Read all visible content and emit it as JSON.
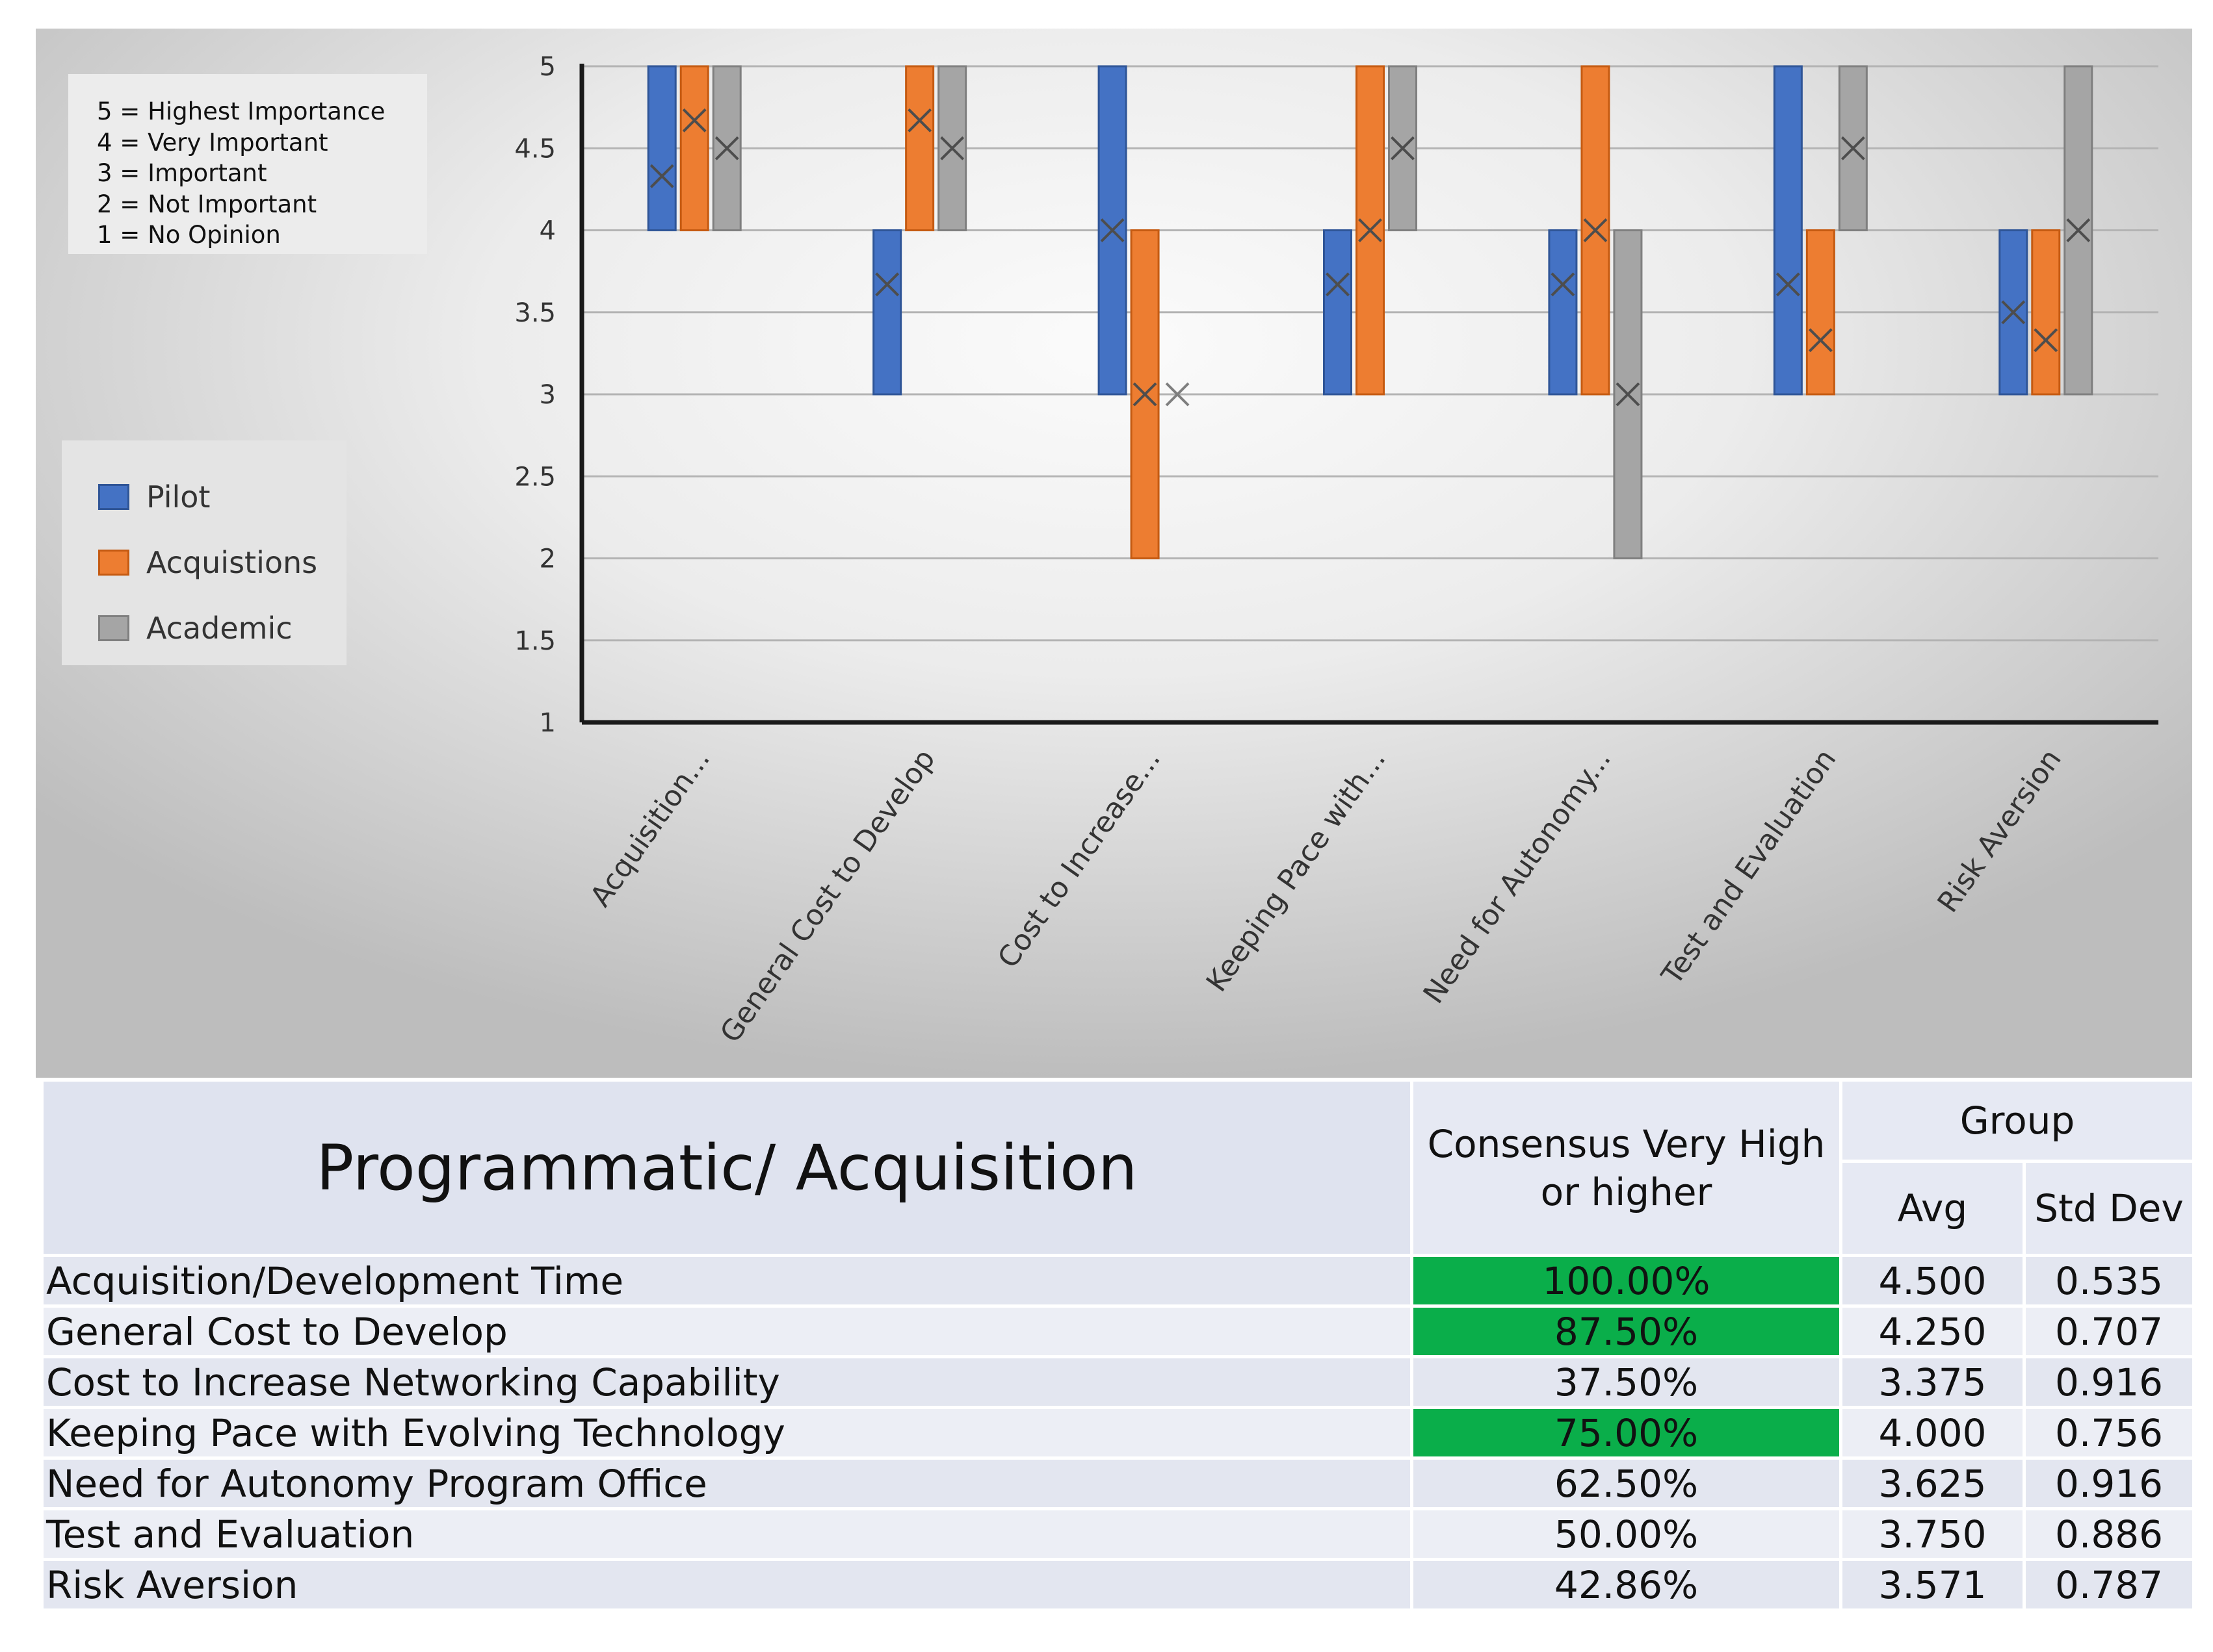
{
  "scale_legend": [
    "5 = Highest Importance",
    "4 = Very Important",
    "3 = Important",
    "2 = Not Important",
    "1 = No Opinion"
  ],
  "chart_data": {
    "type": "box",
    "categories": [
      "Acquisition...",
      "General Cost to Develop",
      "Cost to Increase...",
      "Keeping Pace with...",
      "Need for Autonomy...",
      "Test and Evaluation",
      "Risk Aversion"
    ],
    "ylim": [
      1,
      5
    ],
    "yticks": [
      "1",
      "1.5",
      "2",
      "2.5",
      "3",
      "3.5",
      "4",
      "4.5",
      "5"
    ],
    "grid": true,
    "legend_position": "left",
    "series": [
      {
        "name": "Pilot",
        "color": "#4472c4",
        "ranges": [
          [
            4,
            5
          ],
          [
            3,
            4
          ],
          [
            3,
            5
          ],
          [
            3,
            4
          ],
          [
            3,
            4
          ],
          [
            3,
            5
          ],
          [
            3,
            4
          ]
        ],
        "means": [
          4.33,
          3.67,
          4,
          3.67,
          3.67,
          3.67,
          3.5
        ]
      },
      {
        "name": "Acquistions",
        "color": "#ed7d31",
        "ranges": [
          [
            4,
            5
          ],
          [
            4,
            5
          ],
          [
            2,
            4
          ],
          [
            3,
            5
          ],
          [
            3,
            5
          ],
          [
            3,
            4
          ],
          [
            3,
            4
          ]
        ],
        "means": [
          4.67,
          4.67,
          3,
          4,
          4,
          3.33,
          3.33
        ]
      },
      {
        "name": "Academic",
        "color": "#a5a5a5",
        "ranges": [
          [
            4,
            5
          ],
          [
            4,
            5
          ],
          [
            3,
            3
          ],
          [
            4,
            5
          ],
          [
            2,
            4
          ],
          [
            4,
            5
          ],
          [
            3,
            5
          ]
        ],
        "means": [
          4.5,
          4.5,
          3,
          4.5,
          3,
          4.5,
          4
        ]
      }
    ]
  },
  "table": {
    "title": "Programmatic/ Acquisition",
    "consensus_header": "Consensus Very High or higher",
    "group_header": "Group",
    "avg_header": "Avg",
    "std_header": "Std Dev",
    "highlight_color": "#0aae4a",
    "rows": [
      {
        "name": "Acquisition/Development Time",
        "consensus": "100.00%",
        "avg": "4.500",
        "std": "0.535",
        "highlight": true
      },
      {
        "name": "General Cost to Develop",
        "consensus": "87.50%",
        "avg": "4.250",
        "std": "0.707",
        "highlight": true
      },
      {
        "name": "Cost to Increase Networking Capability",
        "consensus": "37.50%",
        "avg": "3.375",
        "std": "0.916",
        "highlight": false
      },
      {
        "name": "Keeping Pace with Evolving Technology",
        "consensus": "75.00%",
        "avg": "4.000",
        "std": "0.756",
        "highlight": true
      },
      {
        "name": "Need for Autonomy Program Office",
        "consensus": "62.50%",
        "avg": "3.625",
        "std": "0.916",
        "highlight": false
      },
      {
        "name": "Test and Evaluation",
        "consensus": "50.00%",
        "avg": "3.750",
        "std": "0.886",
        "highlight": false
      },
      {
        "name": "Risk Aversion",
        "consensus": "42.86%",
        "avg": "3.571",
        "std": "0.787",
        "highlight": false
      }
    ]
  }
}
